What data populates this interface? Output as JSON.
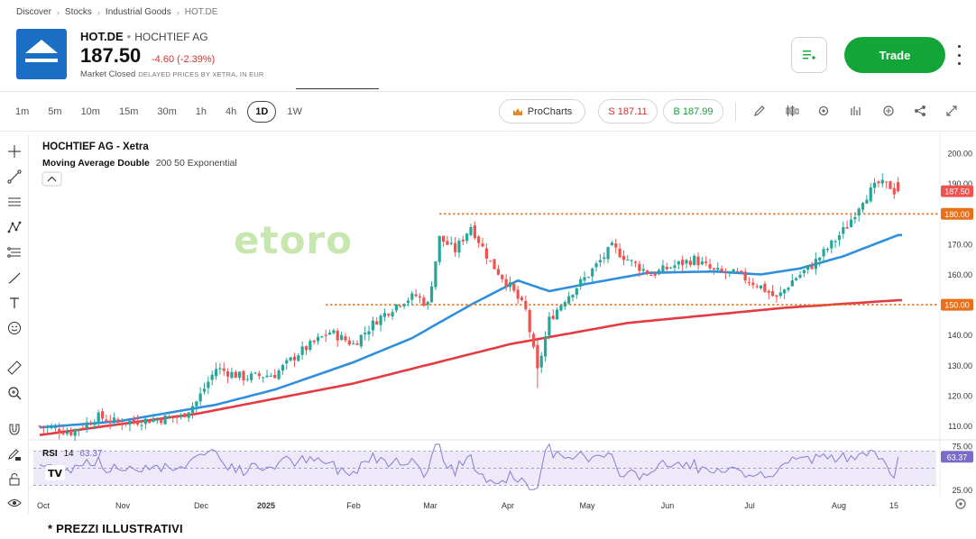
{
  "breadcrumb": [
    "Discover",
    "Stocks",
    "Industrial Goods",
    "HOT.DE"
  ],
  "header": {
    "ticker": "HOT.DE",
    "company": "HOCHTIEF AG",
    "price": "187.50",
    "change": "-4.60 (-2.39%)",
    "market_status": "Market Closed",
    "price_note": "DELAYED PRICES BY XETRA, IN EUR",
    "trade_label": "Trade",
    "watchlist_icon": "add-to-watchlist-icon"
  },
  "toolbar": {
    "timeframes": [
      "1m",
      "5m",
      "10m",
      "15m",
      "30m",
      "1h",
      "4h",
      "1D",
      "1W"
    ],
    "active_timeframe": "1D",
    "procharts_label": "ProCharts",
    "sell_label": "S 187.11",
    "buy_label": "B 187.99",
    "icons": [
      "pencil-icon",
      "candles-icon",
      "settings-icon",
      "bars-icon",
      "crosshair-icon",
      "share-icon",
      "expand-icon"
    ]
  },
  "left_tools": [
    "crosshair-icon",
    "trendline-icon",
    "horizontal-lines-icon",
    "pattern-icon",
    "fib-icon",
    "brush-icon",
    "text-icon",
    "emoji-icon",
    "ruler-icon",
    "zoom-icon",
    "magnet-icon",
    "lock-pencil-icon",
    "unlock-icon",
    "eye-icon"
  ],
  "chart_legend": {
    "symbol_title": "HOCHTIEF AG - Xetra",
    "indicator": "Moving Average Double",
    "indicator_params": "200 50 Exponential",
    "rsi_label": "RSI",
    "rsi_period": "14",
    "rsi_value": "63.37",
    "watermark": "etoro"
  },
  "footer_note": "* PREZZI ILLUSTRATIVI",
  "colors": {
    "up": "#26a69a",
    "down": "#ef5350",
    "ema50": "#2f8fde",
    "ema200": "#e23b41",
    "level_line": "#e8701a",
    "rsi_line": "#8a7bd0",
    "rsi_band": "#ede9f8",
    "trade_green": "#13a538",
    "sell_red": "#d9302b"
  },
  "chart_data": {
    "type": "candlestick",
    "price_axis": {
      "ticks": [
        110,
        120,
        130,
        140,
        150,
        160,
        170,
        180,
        190,
        200
      ],
      "tick_labels": [
        "110.00",
        "120.00",
        "130.00",
        "140.00",
        "150.00",
        "160.00",
        "170.00",
        "180.00",
        "190.00",
        "200.00"
      ],
      "ylim": [
        106,
        203
      ]
    },
    "time_axis": [
      "Oct",
      "Nov",
      "Dec",
      "2025",
      "Feb",
      "Mar",
      "Apr",
      "May",
      "Jun",
      "Jul",
      "Aug",
      "15"
    ],
    "price_labels": [
      {
        "value": 187.5,
        "text": "187.50",
        "style": "last"
      },
      {
        "value": 180,
        "text": "180.00",
        "style": "level"
      },
      {
        "value": 150,
        "text": "150.00",
        "style": "level"
      }
    ],
    "horizontal_levels": [
      {
        "value": 180,
        "from": "Mar",
        "to": "end"
      },
      {
        "value": 150,
        "from": "2025",
        "to": "end"
      }
    ],
    "anchors": [
      [
        0,
        110
      ],
      [
        8,
        108
      ],
      [
        15,
        113
      ],
      [
        20,
        111
      ],
      [
        28,
        112
      ],
      [
        36,
        113
      ],
      [
        40,
        118
      ],
      [
        45,
        129
      ],
      [
        52,
        126
      ],
      [
        60,
        127
      ],
      [
        66,
        134
      ],
      [
        74,
        141
      ],
      [
        80,
        137
      ],
      [
        86,
        145
      ],
      [
        92,
        151
      ],
      [
        96,
        153
      ],
      [
        99,
        150
      ],
      [
        102,
        172
      ],
      [
        106,
        168
      ],
      [
        110,
        176
      ],
      [
        115,
        164
      ],
      [
        120,
        156
      ],
      [
        124,
        148
      ],
      [
        127,
        128
      ],
      [
        130,
        145
      ],
      [
        134,
        152
      ],
      [
        140,
        160
      ],
      [
        146,
        169
      ],
      [
        151,
        164
      ],
      [
        156,
        160
      ],
      [
        162,
        163
      ],
      [
        167,
        165
      ],
      [
        172,
        161
      ],
      [
        178,
        160
      ],
      [
        184,
        156
      ],
      [
        188,
        152
      ],
      [
        192,
        158
      ],
      [
        197,
        163
      ],
      [
        202,
        170
      ],
      [
        206,
        176
      ],
      [
        210,
        185
      ],
      [
        214,
        190
      ],
      [
        217,
        189
      ],
      [
        219,
        186
      ]
    ],
    "ema200": [
      [
        0,
        107
      ],
      [
        40,
        114
      ],
      [
        80,
        124
      ],
      [
        120,
        137
      ],
      [
        150,
        144
      ],
      [
        190,
        149
      ],
      [
        219,
        151.5
      ]
    ],
    "ema50": [
      [
        0,
        109.5
      ],
      [
        20,
        111.5
      ],
      [
        45,
        117
      ],
      [
        60,
        122
      ],
      [
        80,
        131
      ],
      [
        95,
        139
      ],
      [
        110,
        150
      ],
      [
        122,
        158
      ],
      [
        130,
        154.5
      ],
      [
        140,
        157
      ],
      [
        155,
        160.5
      ],
      [
        172,
        161
      ],
      [
        184,
        160
      ],
      [
        194,
        162
      ],
      [
        205,
        166
      ],
      [
        219,
        173
      ]
    ],
    "rsi": {
      "ylim": [
        22,
        80
      ],
      "ticks": [
        25,
        75
      ],
      "tick_labels": [
        "25.00",
        "75.00"
      ],
      "band": [
        30,
        70
      ],
      "midline": 50,
      "last": 63.37
    }
  }
}
